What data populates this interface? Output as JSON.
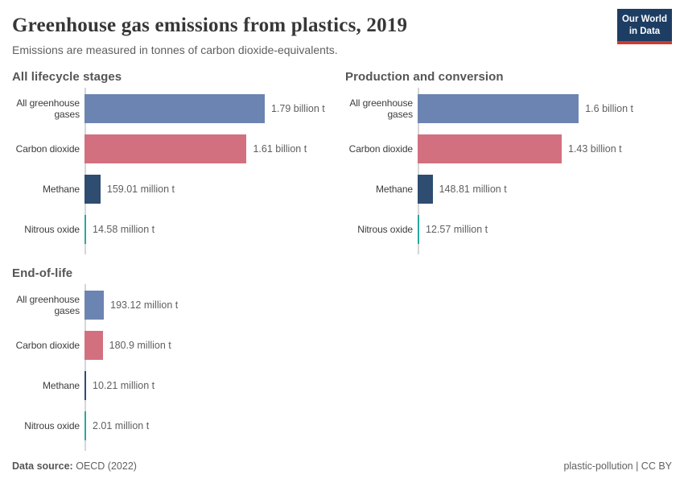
{
  "header": {
    "title": "Greenhouse gas emissions from plastics, 2019",
    "subtitle": "Emissions are measured in tonnes of carbon dioxide-equivalents.",
    "logo": {
      "line1": "Our World",
      "line2": "in Data"
    }
  },
  "footer": {
    "source_label": "Data source:",
    "source_value": "OECD (2022)",
    "note": "plastic-pollution | CC BY"
  },
  "colors": {
    "series": [
      "#6c84b1",
      "#d2707f",
      "#2e4d71",
      "#2aa8a0"
    ],
    "axis_line": "#d6d6d6",
    "logo_background": "#1d3d63",
    "logo_accent": "#cf3a2e"
  },
  "chart_data": [
    {
      "type": "bar",
      "orientation": "horizontal",
      "title": "All lifecycle stages",
      "categories": [
        "All greenhouse gases",
        "Carbon dioxide",
        "Methane",
        "Nitrous oxide"
      ],
      "values": [
        1790000000,
        1610000000,
        159010000,
        14580000
      ],
      "value_labels": [
        "1.79 billion t",
        "1.61 billion t",
        "159.01 million t",
        "14.58 million t"
      ],
      "unit": "tonnes of carbon dioxide-equivalents",
      "xlim": [
        0,
        1790000000
      ],
      "grid": false,
      "legend": false
    },
    {
      "type": "bar",
      "orientation": "horizontal",
      "title": "Production and conversion",
      "categories": [
        "All greenhouse gases",
        "Carbon dioxide",
        "Methane",
        "Nitrous oxide"
      ],
      "values": [
        1600000000,
        1430000000,
        148810000,
        12570000
      ],
      "value_labels": [
        "1.6 billion t",
        "1.43 billion t",
        "148.81 million t",
        "12.57 million t"
      ],
      "unit": "tonnes of carbon dioxide-equivalents",
      "xlim": [
        0,
        1790000000
      ],
      "grid": false,
      "legend": false
    },
    {
      "type": "bar",
      "orientation": "horizontal",
      "title": "End-of-life",
      "categories": [
        "All greenhouse gases",
        "Carbon dioxide",
        "Methane",
        "Nitrous oxide"
      ],
      "values": [
        193120000,
        180900000,
        10210000,
        2010000
      ],
      "value_labels": [
        "193.12 million t",
        "180.9 million t",
        "10.21 million t",
        "2.01 million t"
      ],
      "unit": "tonnes of carbon dioxide-equivalents",
      "xlim": [
        0,
        1790000000
      ],
      "grid": false,
      "legend": false
    }
  ]
}
